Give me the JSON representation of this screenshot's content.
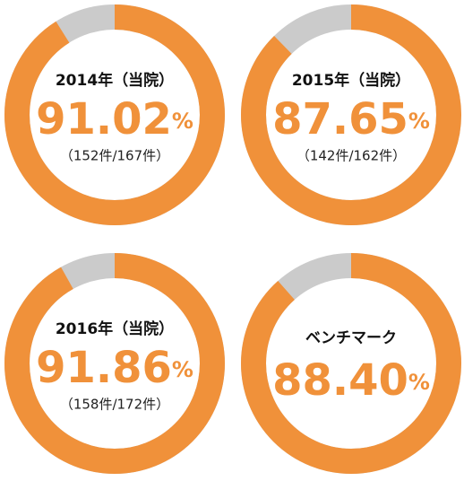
{
  "chart_data": [
    {
      "type": "pie",
      "title": "2014年（当院）",
      "values": [
        91.02
      ],
      "unit": "%",
      "subtitle": "（152件/167件）",
      "color": "#f0913a",
      "rest_color": "#cbcbcb"
    },
    {
      "type": "pie",
      "title": "2015年（当院）",
      "values": [
        87.65
      ],
      "unit": "%",
      "subtitle": "（142件/162件）",
      "color": "#f0913a",
      "rest_color": "#cbcbcb"
    },
    {
      "type": "pie",
      "title": "2016年（当院）",
      "values": [
        91.86
      ],
      "unit": "%",
      "subtitle": "（158件/172件）",
      "color": "#f0913a",
      "rest_color": "#cbcbcb"
    },
    {
      "type": "pie",
      "title": "ベンチマーク",
      "values": [
        88.4
      ],
      "value_labels": [
        "88.40"
      ],
      "unit": "%",
      "color": "#f0913a",
      "rest_color": "#cbcbcb"
    }
  ]
}
